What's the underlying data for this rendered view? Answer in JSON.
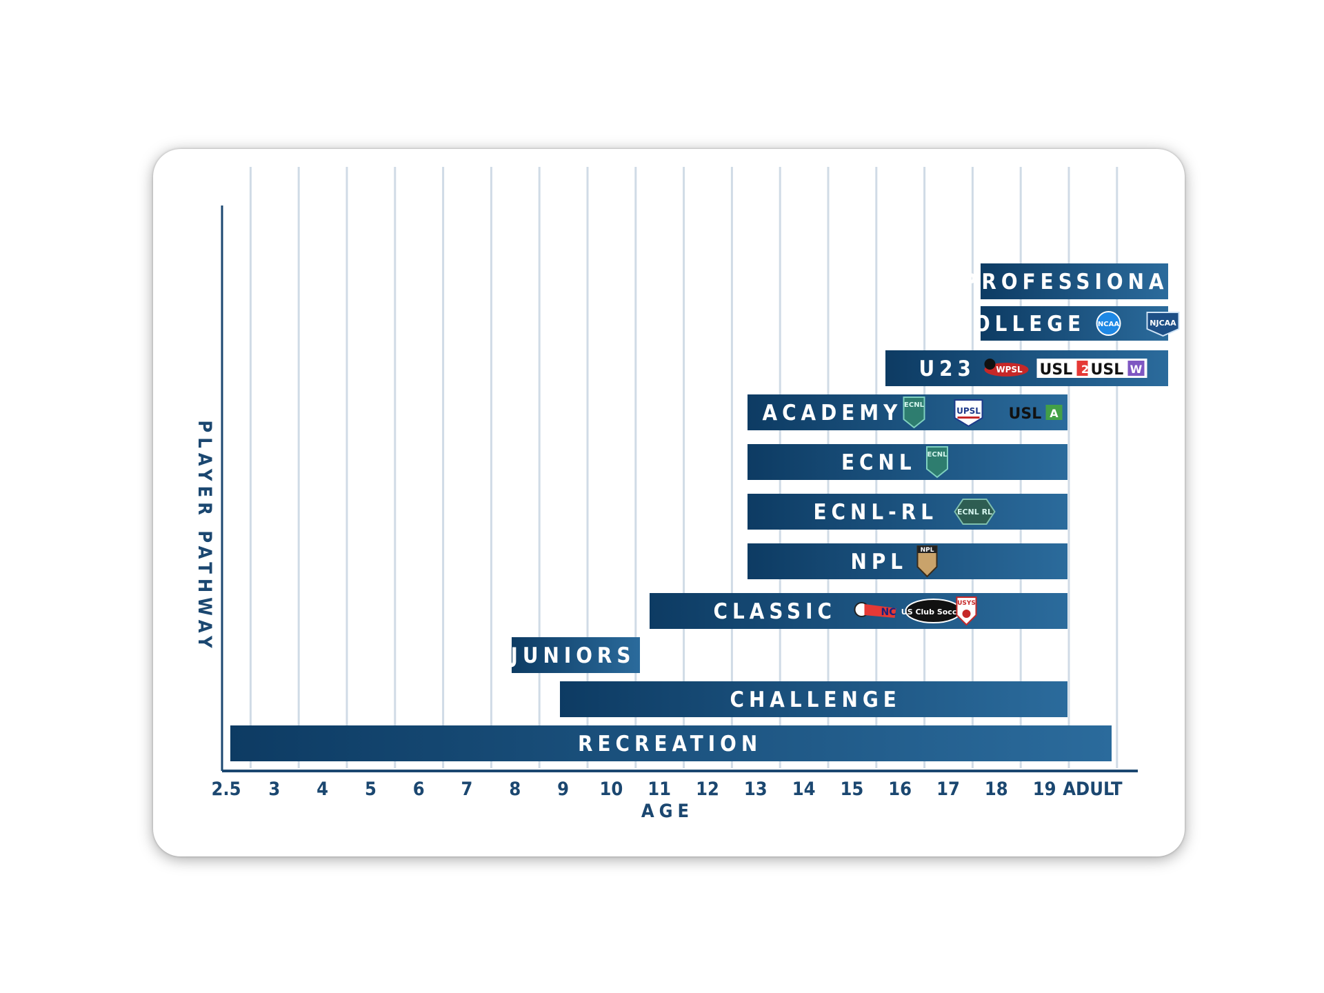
{
  "chart_data": {
    "type": "bar",
    "orientation": "horizontal-range",
    "title": "",
    "xlabel": "AGE",
    "ylabel": "PLAYER PATHWAY",
    "categories": [
      "2.5",
      "3",
      "4",
      "5",
      "6",
      "7",
      "8",
      "9",
      "10",
      "11",
      "12",
      "13",
      "14",
      "15",
      "16",
      "17",
      "18",
      "19",
      "ADULT"
    ],
    "grid": true,
    "colors": {
      "bar_start": "#0d3b63",
      "bar_end": "#2b6b9c",
      "axis": "#1b4770",
      "grid": "#d0dbe6"
    },
    "bars": [
      {
        "label": "PROFESSIONAL",
        "start": "18",
        "end": "ADULT",
        "logos": []
      },
      {
        "label": "COLLEGE",
        "start": "18",
        "end": "ADULT",
        "logos": [
          "NCAA",
          "NJCAA"
        ]
      },
      {
        "label": "U23",
        "start": "16",
        "end": "ADULT",
        "logos": [
          "WPSL",
          "USL 2",
          "USL W"
        ]
      },
      {
        "label": "ACADEMY",
        "start": "13",
        "end": "19",
        "logos": [
          "ECNL",
          "UPSL",
          "USL A"
        ]
      },
      {
        "label": "ECNL",
        "start": "13",
        "end": "19",
        "logos": [
          "ECNL"
        ]
      },
      {
        "label": "ECNL-RL",
        "start": "13",
        "end": "19",
        "logos": [
          "ECNL RL"
        ]
      },
      {
        "label": "NPL",
        "start": "13",
        "end": "19",
        "logos": [
          "NPL"
        ]
      },
      {
        "label": "CLASSIC",
        "start": "11",
        "end": "19",
        "logos": [
          "NC Youth Soccer",
          "US Club Soccer",
          "USYS"
        ]
      },
      {
        "label": "JUNIORS",
        "start": "8",
        "end": "10",
        "logos": []
      },
      {
        "label": "CHALLENGE",
        "start": "9",
        "end": "19",
        "logos": []
      },
      {
        "label": "RECREATION",
        "start": "2.5",
        "end": "ADULT",
        "logos": []
      }
    ]
  }
}
